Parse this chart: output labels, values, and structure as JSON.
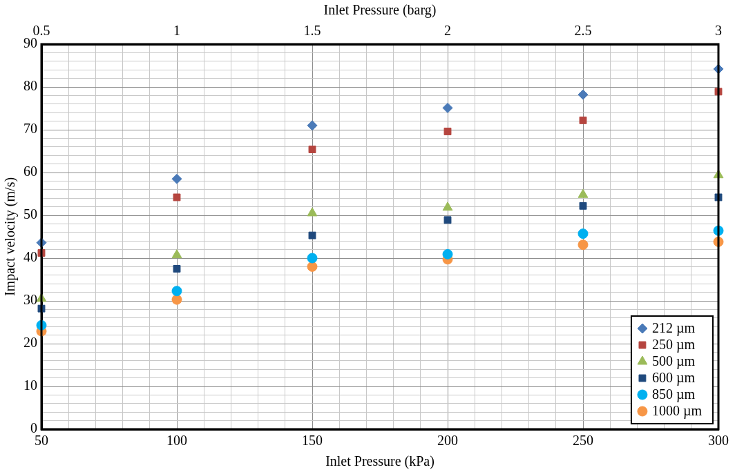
{
  "chart_data": {
    "type": "scatter",
    "xlabel": "Inlet Pressure (kPa)",
    "ylabel": "Impact velocity (m/s)",
    "x2label": "Inlet Pressure (barg)",
    "x": [
      50,
      100,
      150,
      200,
      250,
      300
    ],
    "series": [
      {
        "name": "212 µm",
        "color": "#4a7ab8",
        "marker": "diamond",
        "values": [
          43.6,
          58.5,
          71.0,
          75.1,
          78.2,
          84.2
        ]
      },
      {
        "name": "250 µm",
        "color": "#b5453f",
        "marker": "square",
        "values": [
          41.2,
          54.2,
          65.4,
          69.6,
          72.2,
          78.9
        ]
      },
      {
        "name": "500 µm",
        "color": "#9bbb59",
        "marker": "triangle",
        "values": [
          30.5,
          40.7,
          50.5,
          51.8,
          54.8,
          59.4
        ]
      },
      {
        "name": "600 µm",
        "color": "#1f497d",
        "marker": "square",
        "values": [
          28.2,
          37.5,
          45.3,
          48.9,
          52.2,
          54.2
        ]
      },
      {
        "name": "850 µm",
        "color": "#00b0f0",
        "marker": "circle",
        "values": [
          24.3,
          32.3,
          40.0,
          40.9,
          45.7,
          46.4
        ]
      },
      {
        "name": "1000 µm",
        "color": "#f79646",
        "marker": "circle",
        "values": [
          22.9,
          30.3,
          38.0,
          39.7,
          43.1,
          43.8
        ]
      }
    ],
    "xlim": [
      50,
      300
    ],
    "xticks": [
      50,
      {
        "value": 60,
        "label": null
      },
      {
        "value": 70,
        "label": null
      },
      {
        "value": 80,
        "label": null
      },
      {
        "value": 90,
        "label": null
      },
      100,
      {
        "value": 110,
        "label": null
      },
      {
        "value": 120,
        "label": null
      },
      {
        "value": 130,
        "label": null
      },
      {
        "value": 140,
        "label": null
      },
      150,
      {
        "value": 160,
        "label": null
      },
      {
        "value": 170,
        "label": null
      },
      {
        "value": 180,
        "label": null
      },
      {
        "value": 190,
        "label": null
      },
      200,
      {
        "value": 210,
        "label": null
      },
      {
        "value": 220,
        "label": null
      },
      {
        "value": 230,
        "label": null
      },
      {
        "value": 240,
        "label": null
      },
      250,
      {
        "value": 260,
        "label": null
      },
      {
        "value": 270,
        "label": null
      },
      {
        "value": 280,
        "label": null
      },
      {
        "value": 290,
        "label": null
      },
      300
    ],
    "x2lim": [
      0.5,
      3
    ],
    "x2ticks": [
      0.5,
      1,
      1.5,
      2,
      2.5,
      3
    ],
    "ylim": [
      0,
      90
    ],
    "yticks": [
      0,
      {
        "value": 2,
        "label": null
      },
      {
        "value": 4,
        "label": null
      },
      {
        "value": 6,
        "label": null
      },
      {
        "value": 8,
        "label": null
      },
      10,
      {
        "value": 12,
        "label": null
      },
      {
        "value": 14,
        "label": null
      },
      {
        "value": 16,
        "label": null
      },
      {
        "value": 18,
        "label": null
      },
      20,
      {
        "value": 22,
        "label": null
      },
      {
        "value": 24,
        "label": null
      },
      {
        "value": 26,
        "label": null
      },
      {
        "value": 28,
        "label": null
      },
      30,
      {
        "value": 32,
        "label": null
      },
      {
        "value": 34,
        "label": null
      },
      {
        "value": 36,
        "label": null
      },
      {
        "value": 38,
        "label": null
      },
      40,
      {
        "value": 42,
        "label": null
      },
      {
        "value": 44,
        "label": null
      },
      {
        "value": 46,
        "label": null
      },
      {
        "value": 48,
        "label": null
      },
      50,
      {
        "value": 52,
        "label": null
      },
      {
        "value": 54,
        "label": null
      },
      {
        "value": 56,
        "label": null
      },
      {
        "value": 58,
        "label": null
      },
      60,
      {
        "value": 62,
        "label": null
      },
      {
        "value": 64,
        "label": null
      },
      {
        "value": 66,
        "label": null
      },
      {
        "value": 68,
        "label": null
      },
      70,
      {
        "value": 72,
        "label": null
      },
      {
        "value": 74,
        "label": null
      },
      {
        "value": 76,
        "label": null
      },
      {
        "value": 78,
        "label": null
      },
      80,
      {
        "value": 82,
        "label": null
      },
      {
        "value": 84,
        "label": null
      },
      {
        "value": 86,
        "label": null
      },
      {
        "value": 88,
        "label": null
      },
      90
    ],
    "grid": true,
    "legend": "bottom right"
  }
}
